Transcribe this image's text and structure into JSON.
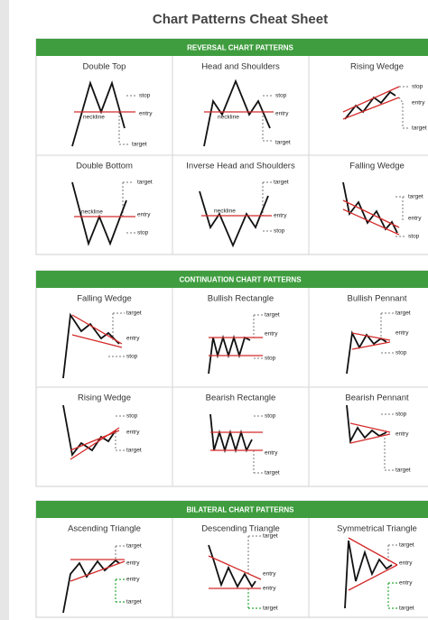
{
  "title": "Chart Patterns Cheat Sheet",
  "sections": [
    {
      "heading": "REVERSAL CHART PATTERNS",
      "patterns": [
        {
          "name": "Double Top",
          "labels": [
            "neckline",
            "stop",
            "entry",
            "target"
          ]
        },
        {
          "name": "Head and Shoulders",
          "labels": [
            "neckline",
            "stop",
            "entry",
            "target"
          ]
        },
        {
          "name": "Rising Wedge",
          "labels": [
            "stop",
            "entry",
            "target"
          ]
        },
        {
          "name": "Double Bottom",
          "labels": [
            "target",
            "neckline",
            "entry",
            "stop"
          ]
        },
        {
          "name": "Inverse Head and Shoulders",
          "labels": [
            "target",
            "neckline",
            "entry",
            "stop"
          ]
        },
        {
          "name": "Falling Wedge",
          "labels": [
            "target",
            "entry",
            "stop"
          ]
        }
      ]
    },
    {
      "heading": "CONTINUATION CHART PATTERNS",
      "patterns": [
        {
          "name": "Falling Wedge",
          "labels": [
            "target",
            "entry",
            "stop"
          ]
        },
        {
          "name": "Bullish Rectangle",
          "labels": [
            "target",
            "entry",
            "stop"
          ]
        },
        {
          "name": "Bullish Pennant",
          "labels": [
            "target",
            "entry",
            "stop"
          ]
        },
        {
          "name": "Rising Wedge",
          "labels": [
            "stop",
            "entry",
            "target"
          ]
        },
        {
          "name": "Bearish Rectangle",
          "labels": [
            "stop",
            "entry",
            "target"
          ]
        },
        {
          "name": "Bearish Pennant",
          "labels": [
            "stop",
            "entry",
            "target"
          ]
        }
      ]
    },
    {
      "heading": "BILATERAL CHART PATTERNS",
      "patterns": [
        {
          "name": "Ascending Triangle",
          "labels": [
            "target",
            "entry",
            "entry",
            "target"
          ]
        },
        {
          "name": "Descending Triangle",
          "labels": [
            "target",
            "entry",
            "entry",
            "target"
          ]
        },
        {
          "name": "Symmetrical Triangle",
          "labels": [
            "target",
            "entry",
            "entry",
            "target"
          ]
        }
      ]
    }
  ]
}
